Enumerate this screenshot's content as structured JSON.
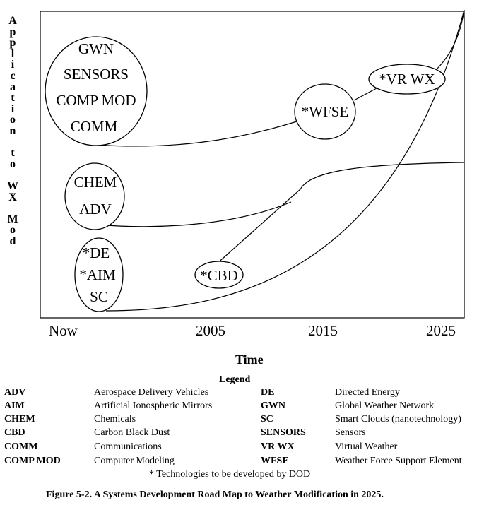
{
  "y_axis_label": "Application to WX Mod",
  "x_axis": {
    "label": "Time",
    "ticks": [
      "Now",
      "2005",
      "2015",
      "2025"
    ]
  },
  "nodes": {
    "group_top": [
      "GWN",
      "SENSORS",
      "COMP MOD",
      "COMM"
    ],
    "group_mid": [
      "CHEM",
      "ADV"
    ],
    "group_low": [
      "*DE",
      "*AIM",
      "SC"
    ],
    "cbd": "*CBD",
    "wfse": "*WFSE",
    "vrwx": "*VR WX"
  },
  "legend": {
    "title": "Legend",
    "left": [
      {
        "abbr": "ADV",
        "def": "Aerospace Delivery Vehicles"
      },
      {
        "abbr": "AIM",
        "def": "Artificial Ionospheric Mirrors"
      },
      {
        "abbr": "CHEM",
        "def": "Chemicals"
      },
      {
        "abbr": "CBD",
        "def": "Carbon Black Dust"
      },
      {
        "abbr": "COMM",
        "def": "Communications"
      },
      {
        "abbr": "COMP MOD",
        "def": "Computer Modeling"
      }
    ],
    "right": [
      {
        "abbr": "DE",
        "def": "Directed Energy"
      },
      {
        "abbr": "GWN",
        "def": "Global Weather Network"
      },
      {
        "abbr": "SC",
        "def": "Smart Clouds (nanotechnology)"
      },
      {
        "abbr": "SENSORS",
        "def": "Sensors"
      },
      {
        "abbr": "VR WX",
        "def": "Virtual Weather"
      },
      {
        "abbr": "WFSE",
        "def": "Weather Force Support Element"
      }
    ],
    "footnote": "*  Technologies to be developed by DOD"
  },
  "caption": "Figure 5-2.  A Systems Development Road Map to Weather Modification in 2025."
}
